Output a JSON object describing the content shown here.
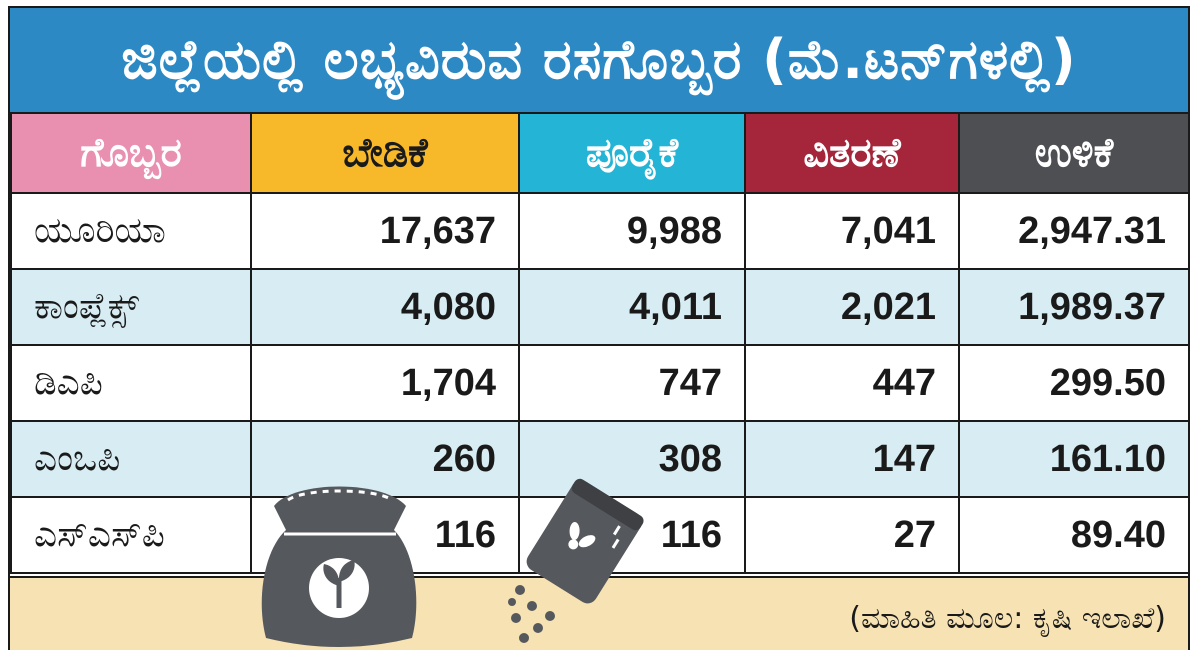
{
  "title": "ಜಿಲ್ಲೆಯಲ್ಲಿ ಲಭ್ಯವಿರುವ ರಸಗೊಬ್ಬರ (ಮೆ.ಟನ್‌ಗಳಲ್ಲಿ)",
  "headers": [
    {
      "label": "ಗೊಬ್ಬರ",
      "bg": "#e98fb0",
      "fg": "#ffffff"
    },
    {
      "label": "ಬೇಡಿಕೆ",
      "bg": "#f7b829",
      "fg": "#1a1a1a"
    },
    {
      "label": "ಪೂರೈಕೆ",
      "bg": "#24b4d6",
      "fg": "#ffffff"
    },
    {
      "label": "ವಿತರಣೆ",
      "bg": "#a5263b",
      "fg": "#ffffff"
    },
    {
      "label": "ಉಳಿಕೆ",
      "bg": "#4d4f52",
      "fg": "#ffffff"
    }
  ],
  "rows": [
    {
      "name": "ಯೂರಿಯಾ",
      "demand": "17,637",
      "supply": "9,988",
      "distribution": "7,041",
      "balance": "2,947.31"
    },
    {
      "name": "ಕಾಂಪ್ಲೆಕ್ಸ್",
      "demand": "4,080",
      "supply": "4,011",
      "distribution": "2,021",
      "balance": "1,989.37"
    },
    {
      "name": "ಡಿಎಪಿ",
      "demand": "1,704",
      "supply": "747",
      "distribution": "447",
      "balance": "299.50"
    },
    {
      "name": "ಎಂಒಪಿ",
      "demand": "260",
      "supply": "308",
      "distribution": "147",
      "balance": "161.10"
    },
    {
      "name": "ಎಸ್‌ಎಸ್‌ಪಿ",
      "demand": "116",
      "supply": "116",
      "distribution": "27",
      "balance": "89.40"
    }
  ],
  "source": "(ಮಾಹಿತಿ ಮೂಲ: ಕೃಷಿ ಇಲಾಖೆ)",
  "colors": {
    "title_bg": "#2c89c4",
    "alt_row": "#d7edf3",
    "footer_bg": "#f6e2b3",
    "icon": "#55585c"
  },
  "icons": [
    "fertilizer-sack-icon",
    "fertilizer-shaker-icon"
  ],
  "chart_data": {
    "type": "table",
    "title": "ಜಿಲ್ಲೆಯಲ್ಲಿ ಲಭ್ಯವಿರುವ ರಸಗೊಬ್ಬರ (ಮೆ.ಟನ್‌ಗಳಲ್ಲಿ)",
    "columns": [
      "ಗೊಬ್ಬರ",
      "ಬೇಡಿಕೆ",
      "ಪೂರೈಕೆ",
      "ವಿತರಣೆ",
      "ಉಳಿಕೆ"
    ],
    "categories": [
      "ಯೂರಿಯಾ",
      "ಕಾಂಪ್ಲೆಕ್ಸ್",
      "ಡಿಎಪಿ",
      "ಎಂಒಪಿ",
      "ಎಸ್‌ಎಸ್‌ಪಿ"
    ],
    "series": [
      {
        "name": "ಬೇಡಿಕೆ",
        "values": [
          17637,
          4080,
          1704,
          260,
          116
        ]
      },
      {
        "name": "ಪೂರೈಕೆ",
        "values": [
          9988,
          4011,
          747,
          308,
          116
        ]
      },
      {
        "name": "ವಿತರಣೆ",
        "values": [
          7041,
          2021,
          447,
          147,
          27
        ]
      },
      {
        "name": "ಉಳಿಕೆ",
        "values": [
          2947.31,
          1989.37,
          299.5,
          161.1,
          89.4
        ]
      }
    ]
  }
}
